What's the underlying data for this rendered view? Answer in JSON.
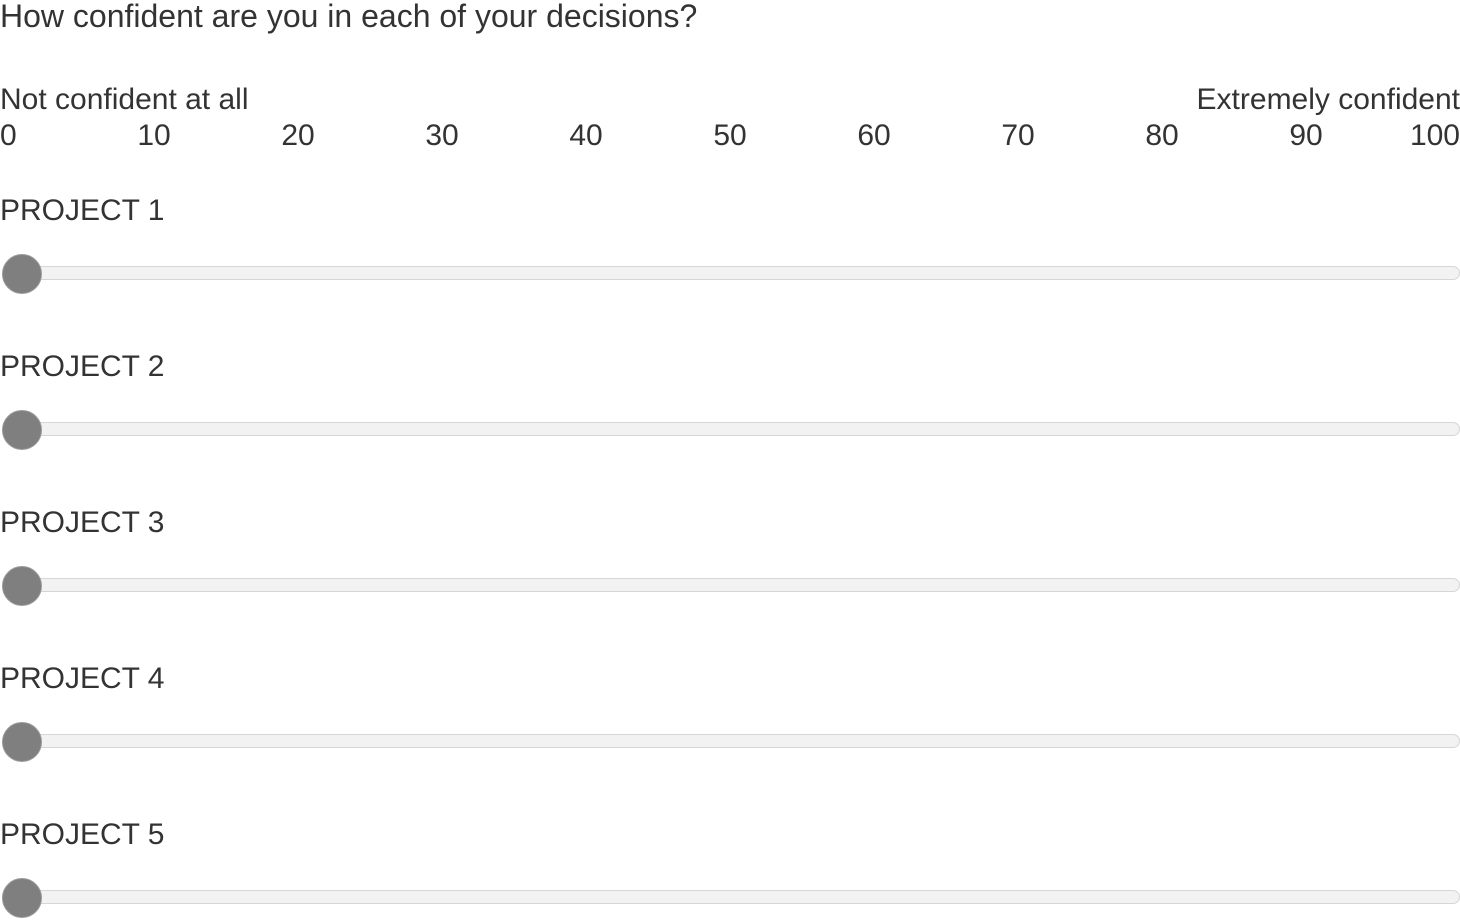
{
  "question": {
    "text": "How confident are you in each of your decisions?"
  },
  "scale": {
    "left_anchor": "Not confident at all",
    "right_anchor": "Extremely confident",
    "min": 0,
    "max": 100,
    "ticks": [
      "0",
      "10",
      "20",
      "30",
      "40",
      "50",
      "60",
      "70",
      "80",
      "90",
      "100"
    ]
  },
  "statements": [
    {
      "label": "PROJECT 1",
      "value": 0
    },
    {
      "label": "PROJECT 2",
      "value": 0
    },
    {
      "label": "PROJECT 3",
      "value": 0
    },
    {
      "label": "PROJECT 4",
      "value": 0
    },
    {
      "label": "PROJECT 5",
      "value": 0
    }
  ],
  "colors": {
    "text": "#333333",
    "track": "#f2f2f2",
    "track_border": "#d6d6d6",
    "handle": "#7f7f7f"
  }
}
